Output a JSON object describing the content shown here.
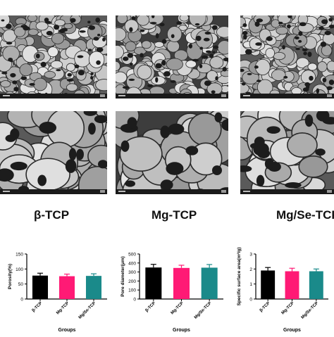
{
  "figure": {
    "group_labels": [
      "β-TCP",
      "Mg-TCP",
      "Mg/Se-TCP"
    ],
    "sem_panels": [
      {
        "group": "β-TCP",
        "magnification": "low"
      },
      {
        "group": "Mg-TCP",
        "magnification": "low"
      },
      {
        "group": "Mg/Se-TCP",
        "magnification": "low"
      },
      {
        "group": "β-TCP",
        "magnification": "high"
      },
      {
        "group": "Mg-TCP",
        "magnification": "high"
      },
      {
        "group": "Mg/Se-TCP",
        "magnification": "high"
      }
    ]
  },
  "chart_data": [
    {
      "type": "bar",
      "categories": [
        "β-TCP",
        "Mg-TCP",
        "Mg/Se-TCP"
      ],
      "values": [
        78,
        76,
        77
      ],
      "errors": [
        8,
        7,
        7
      ],
      "colors": [
        "#000000",
        "#ff1a75",
        "#1a8a8a"
      ],
      "xlabel": "Groups",
      "ylabel": "Porosity(%)",
      "ylim": [
        0,
        150
      ],
      "yticks": [
        "0",
        "50",
        "100",
        "150"
      ]
    },
    {
      "type": "bar",
      "categories": [
        "β-TCP",
        "Mg-TCP",
        "Mg/Se-TCP"
      ],
      "values": [
        350,
        345,
        348
      ],
      "errors": [
        35,
        30,
        35
      ],
      "colors": [
        "#000000",
        "#ff1a75",
        "#1a8a8a"
      ],
      "xlabel": "Groups",
      "ylabel": "Pore diameter(μm)",
      "ylim": [
        0,
        500
      ],
      "yticks": [
        "0",
        "100",
        "200",
        "300",
        "400",
        "500"
      ]
    },
    {
      "type": "bar",
      "categories": [
        "β-TCP",
        "Mg-TCP",
        "Mg/Se-TCP"
      ],
      "values": [
        1.9,
        1.85,
        1.85
      ],
      "errors": [
        0.2,
        0.2,
        0.15
      ],
      "colors": [
        "#000000",
        "#ff1a75",
        "#1a8a8a"
      ],
      "xlabel": "Groups",
      "ylabel": "Specific surface area(m²/g)",
      "ylim": [
        0,
        3
      ],
      "yticks": [
        "0",
        "1",
        "2",
        "3"
      ]
    }
  ]
}
